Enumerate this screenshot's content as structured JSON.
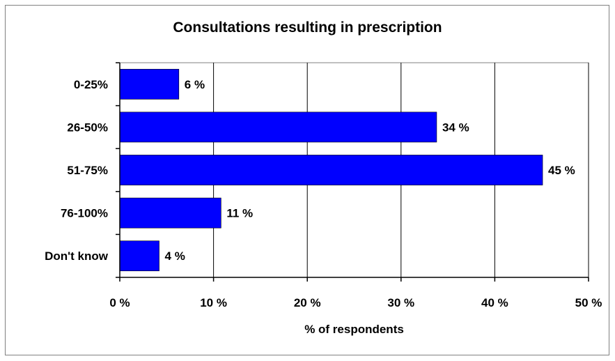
{
  "chart_data": {
    "type": "bar",
    "orientation": "horizontal",
    "title": "Consultations resulting in prescription",
    "xlabel": "% of respondents",
    "ylabel": "",
    "categories": [
      "0-25%",
      "26-50%",
      "51-75%",
      "76-100%",
      "Don't know"
    ],
    "values": [
      6.3,
      33.8,
      45.1,
      10.8,
      4.2
    ],
    "data_labels": [
      "6 %",
      "34 %",
      "45 %",
      "11 %",
      "4 %"
    ],
    "xlim": [
      0,
      50
    ],
    "xticks": [
      0,
      10,
      20,
      30,
      40,
      50
    ],
    "xtick_labels": [
      "0 %",
      "10 %",
      "20 %",
      "30 %",
      "40 %",
      "50 %"
    ],
    "grid": "vertical",
    "legend": "none",
    "bar_color": "#0000FF"
  }
}
